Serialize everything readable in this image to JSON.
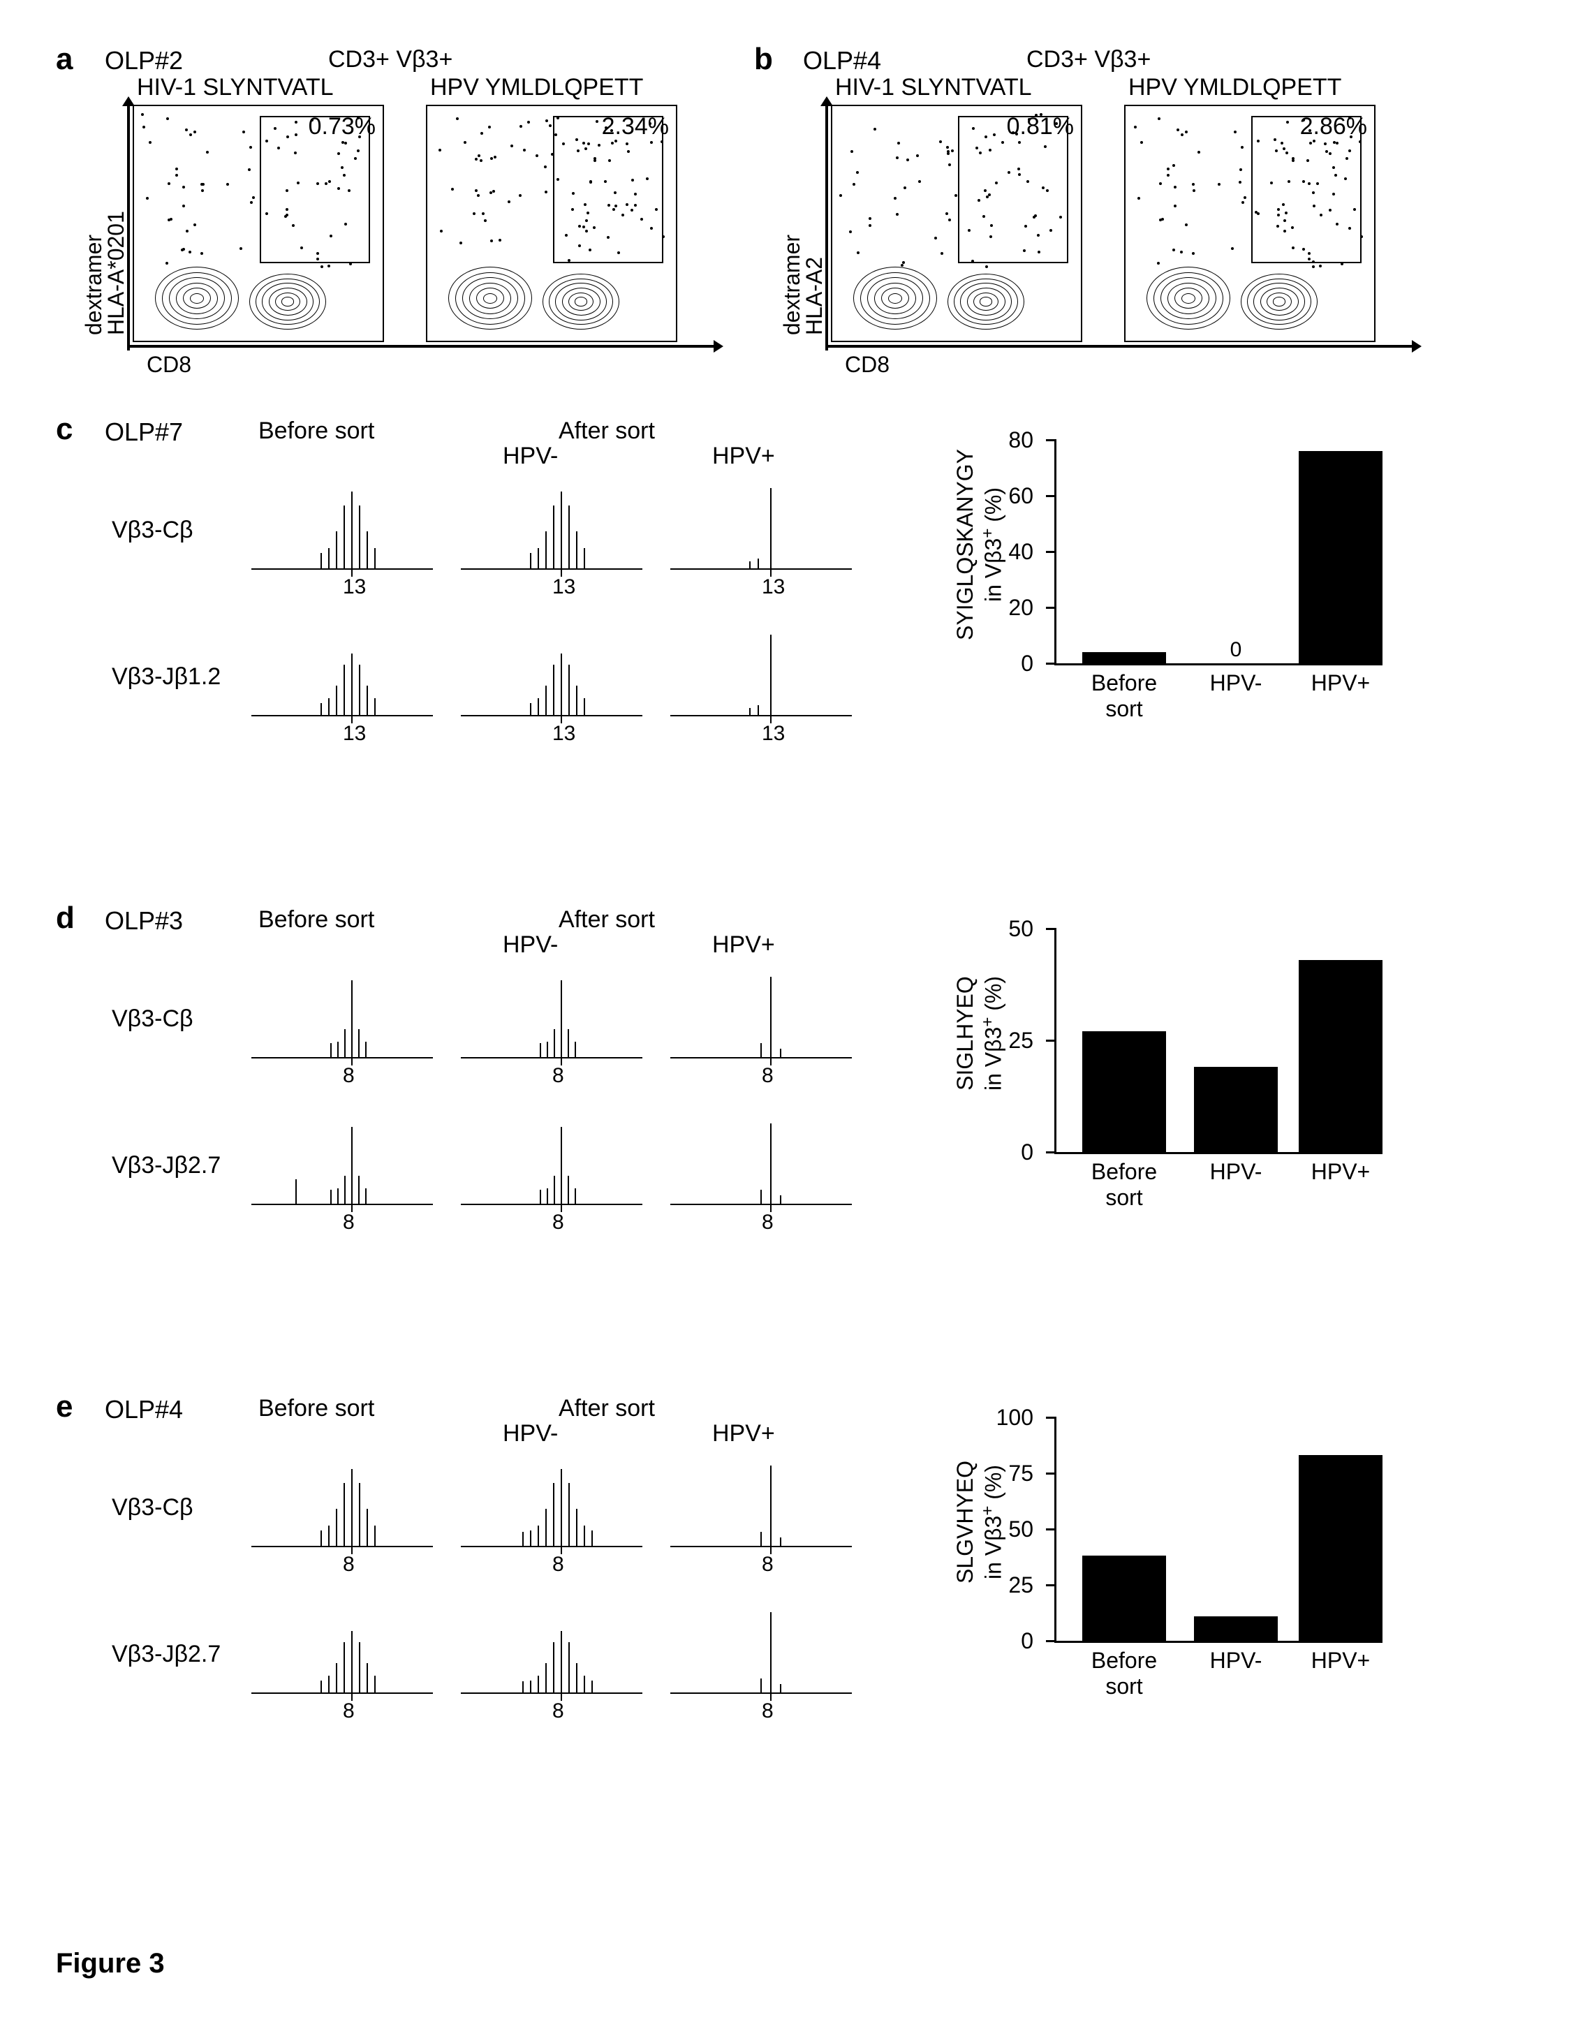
{
  "figure_caption": "Figure 3",
  "panels_ab": {
    "gating": "CD3+ Vβ3+",
    "xaxis": "CD8",
    "yaxis_left": "dextramer",
    "plots": [
      {
        "panel": "a",
        "olp": "OLP#2",
        "yaxis_right": "HLA-A*0201",
        "left_title": "HIV-1 SLYNTVATL",
        "right_title": "HPV YMLDLQPETT",
        "left_pct": "0.73%",
        "right_pct": "2.34%"
      },
      {
        "panel": "b",
        "olp": "OLP#4",
        "yaxis_right": "HLA-A2",
        "left_title": "HIV-1 SLYNTVATL",
        "right_title": "HPV YMLDLQPETT",
        "left_pct": "0.81%",
        "right_pct": "2.86%"
      }
    ]
  },
  "panels_cde": {
    "col_before": "Before sort",
    "col_after": "After sort",
    "col_hpv_neg": "HPV-",
    "col_hpv_pos": "HPV+",
    "rows": [
      {
        "panel": "c",
        "olp": "OLP#7",
        "tracks": [
          "Vβ3-Cβ",
          "Vβ3-Jβ1.2"
        ],
        "peak_tick": "13",
        "spectra_shape": {
          "before": "multi",
          "hpv_neg": "multi",
          "hpv_pos": "single"
        },
        "bar": {
          "ylabel_line1": "SYIGLQSKANYGY",
          "ylabel_line2": "in Vβ3⁺ (%)",
          "yticks": [
            0,
            20,
            40,
            60,
            80
          ],
          "ymax": 80,
          "values": [
            4,
            0,
            76
          ],
          "zero_label_shown": true,
          "categories": [
            "Before\nsort",
            "HPV-",
            "HPV+"
          ]
        }
      },
      {
        "panel": "d",
        "olp": "OLP#3",
        "tracks": [
          "Vβ3-Cβ",
          "Vβ3-Jβ2.7"
        ],
        "peak_tick": "8",
        "spectra_shape": {
          "before": "narrow_multi",
          "hpv_neg": "narrow_multi",
          "hpv_pos": "sparse"
        },
        "bar": {
          "ylabel_line1": "SIGLHYEQ",
          "ylabel_line2": "in Vβ3⁺ (%)",
          "yticks": [
            0,
            25,
            50
          ],
          "ymax": 50,
          "values": [
            27,
            19,
            43
          ],
          "zero_label_shown": false,
          "categories": [
            "Before\nsort",
            "HPV-",
            "HPV+"
          ]
        }
      },
      {
        "panel": "e",
        "olp": "OLP#4",
        "tracks": [
          "Vβ3-Cβ",
          "Vβ3-Jβ2.7"
        ],
        "peak_tick": "8",
        "spectra_shape": {
          "before": "multi",
          "hpv_neg": "multi_wide",
          "hpv_pos": "sparse"
        },
        "bar": {
          "ylabel_line1": "SLGVHYEQ",
          "ylabel_line2": "in Vβ3⁺ (%)",
          "yticks": [
            0,
            25,
            50,
            75,
            100
          ],
          "ymax": 100,
          "values": [
            38,
            11,
            83
          ],
          "zero_label_shown": false,
          "categories": [
            "Before\nsort",
            "HPV-",
            "HPV+"
          ]
        }
      }
    ]
  },
  "style": {
    "bar_color": "#000000",
    "background": "#ffffff",
    "axis_color": "#000000",
    "plot_border_color": "#000000",
    "font_family": "Arial",
    "label_fontsize": 34,
    "panel_label_fontsize": 44,
    "tick_fontsize": 30
  }
}
